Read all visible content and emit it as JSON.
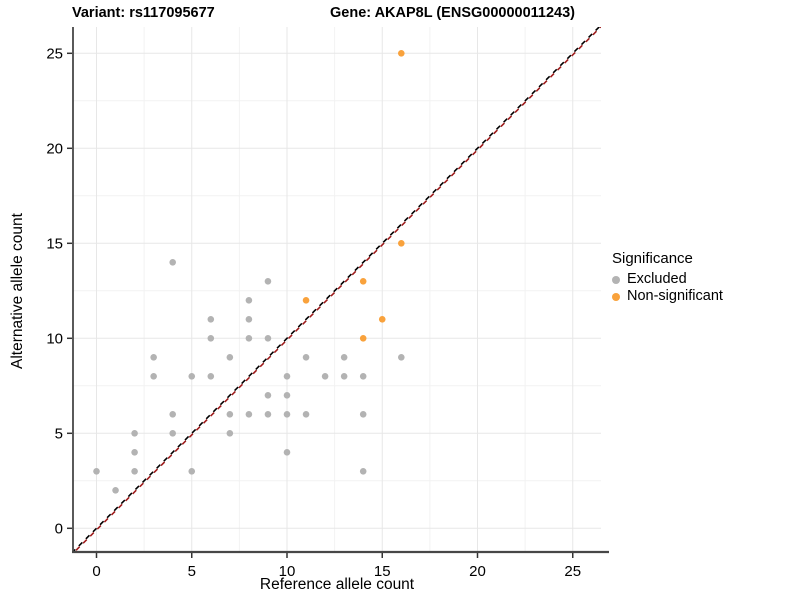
{
  "titles": {
    "left": "Variant: rs117095677",
    "right": "Gene: AKAP8L (ENSG00000011243)"
  },
  "chart_data": {
    "type": "scatter",
    "xlabel": "Reference allele count",
    "ylabel": "Alternative allele count",
    "xlim": [
      -1.3,
      26.5
    ],
    "ylim": [
      -1.3,
      26.5
    ],
    "x_ticks": [
      0,
      5,
      10,
      15,
      20,
      25
    ],
    "y_ticks": [
      0,
      5,
      10,
      15,
      20,
      25
    ],
    "x_minor_ticks": [
      2.5,
      7.5,
      12.5,
      17.5,
      22.5
    ],
    "y_minor_ticks": [
      2.5,
      7.5,
      12.5,
      17.5,
      22.5
    ],
    "grid": true,
    "legend": {
      "title": "Significance",
      "position": "right"
    },
    "identity_line": {
      "slope": 1,
      "intercept": 0,
      "style": "dashed",
      "colors": [
        "#000000",
        "#9E1B1B"
      ]
    },
    "series": [
      {
        "name": "Excluded",
        "color": "#B3B3B3",
        "points": [
          [
            0,
            3
          ],
          [
            1,
            2
          ],
          [
            2,
            3
          ],
          [
            2,
            4
          ],
          [
            2,
            5
          ],
          [
            3,
            8
          ],
          [
            3,
            9
          ],
          [
            4,
            5
          ],
          [
            4,
            6
          ],
          [
            4,
            14
          ],
          [
            5,
            3
          ],
          [
            5,
            8
          ],
          [
            6,
            8
          ],
          [
            6,
            10
          ],
          [
            6,
            11
          ],
          [
            7,
            5
          ],
          [
            7,
            6
          ],
          [
            7,
            9
          ],
          [
            8,
            6
          ],
          [
            8,
            10
          ],
          [
            8,
            11
          ],
          [
            8,
            12
          ],
          [
            9,
            6
          ],
          [
            9,
            7
          ],
          [
            9,
            10
          ],
          [
            9,
            13
          ],
          [
            10,
            4
          ],
          [
            10,
            6
          ],
          [
            10,
            7
          ],
          [
            10,
            8
          ],
          [
            11,
            6
          ],
          [
            11,
            9
          ],
          [
            12,
            8
          ],
          [
            13,
            8
          ],
          [
            13,
            9
          ],
          [
            14,
            3
          ],
          [
            14,
            6
          ],
          [
            14,
            8
          ],
          [
            16,
            9
          ]
        ]
      },
      {
        "name": "Non-significant",
        "color": "#F9A23C",
        "points": [
          [
            11,
            12
          ],
          [
            14,
            10
          ],
          [
            14,
            13
          ],
          [
            15,
            11
          ],
          [
            16,
            15
          ],
          [
            16,
            25
          ]
        ]
      }
    ],
    "colors": {
      "grid_major": "#E7E7E7",
      "grid_minor": "#F2F2F2",
      "axis_line": "#474747",
      "tick_mark": "#333333",
      "text": "#000000"
    }
  }
}
